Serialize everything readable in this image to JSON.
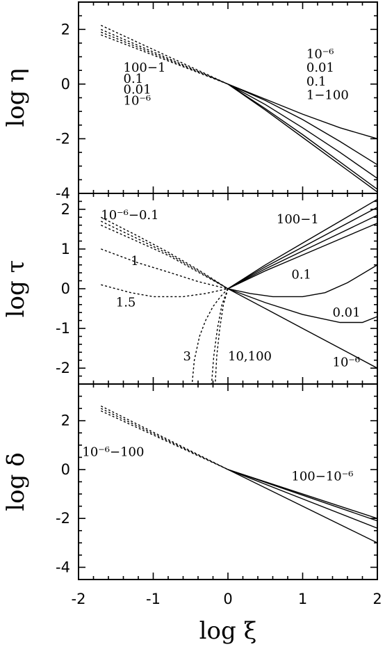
{
  "chart_data": [
    {
      "type": "line",
      "panel": "top",
      "ylabel": "log η",
      "xlim": [
        -2,
        2
      ],
      "ylim": [
        -4,
        3
      ],
      "yticks": [
        "-4",
        "-2",
        "0",
        "2"
      ],
      "annotations": [
        {
          "text": "100−1",
          "x": -1.4,
          "y": 0.45
        },
        {
          "text": "0.1",
          "x": -1.4,
          "y": 0.05
        },
        {
          "text": "0.01",
          "x": -1.4,
          "y": -0.35
        },
        {
          "text": "10⁻⁶",
          "x": -1.4,
          "y": -0.75
        },
        {
          "text": "10⁻⁶",
          "x": 1.05,
          "y": 0.95
        },
        {
          "text": "0.01",
          "x": 1.05,
          "y": 0.45
        },
        {
          "text": "0.1",
          "x": 1.05,
          "y": -0.05
        },
        {
          "text": "1−100",
          "x": 1.05,
          "y": -0.55
        }
      ],
      "series": [
        {
          "style": "dotted",
          "x": [
            -1.7,
            0
          ],
          "y": [
            2.15,
            0
          ]
        },
        {
          "style": "dotted",
          "x": [
            -1.7,
            0
          ],
          "y": [
            2.0,
            0
          ]
        },
        {
          "style": "dotted",
          "x": [
            -1.7,
            0
          ],
          "y": [
            1.9,
            0
          ]
        },
        {
          "style": "dotted",
          "x": [
            -1.7,
            0
          ],
          "y": [
            1.8,
            0
          ]
        },
        {
          "style": "solid",
          "x": [
            0,
            0.5,
            1,
            1.5,
            2
          ],
          "y": [
            0,
            -0.55,
            -1.1,
            -1.6,
            -2.0
          ]
        },
        {
          "style": "solid",
          "x": [
            0,
            0.5,
            1,
            1.5,
            2
          ],
          "y": [
            0,
            -0.6,
            -1.3,
            -2.1,
            -2.95
          ]
        },
        {
          "style": "solid",
          "x": [
            0,
            0.5,
            1,
            1.5,
            2
          ],
          "y": [
            0,
            -0.75,
            -1.6,
            -2.5,
            -3.45
          ]
        },
        {
          "style": "solid",
          "x": [
            0,
            0.5,
            1,
            1.5,
            2
          ],
          "y": [
            0,
            -0.9,
            -1.85,
            -2.85,
            -3.85
          ]
        },
        {
          "style": "solid",
          "x": [
            0,
            0.5,
            1,
            1.5,
            2
          ],
          "y": [
            0,
            -0.95,
            -1.95,
            -2.95,
            -3.95
          ]
        }
      ]
    },
    {
      "type": "line",
      "panel": "middle",
      "ylabel": "log τ",
      "xlim": [
        -2,
        2
      ],
      "ylim": [
        -2.4,
        2.4
      ],
      "yticks": [
        "-2",
        "-1",
        "0",
        "1",
        "2"
      ],
      "annotations": [
        {
          "text": "10⁻⁶−0.1",
          "x": -1.7,
          "y": 1.75
        },
        {
          "text": "1",
          "x": -1.3,
          "y": 0.6
        },
        {
          "text": "1.5",
          "x": -1.5,
          "y": -0.45
        },
        {
          "text": "3",
          "x": -0.6,
          "y": -1.8
        },
        {
          "text": "10,100",
          "x": 0.0,
          "y": -1.8
        },
        {
          "text": "100−1",
          "x": 0.65,
          "y": 1.65
        },
        {
          "text": "0.1",
          "x": 0.85,
          "y": 0.25
        },
        {
          "text": "0.01",
          "x": 1.4,
          "y": -0.7
        },
        {
          "text": "10⁻⁶",
          "x": 1.4,
          "y": -1.95
        }
      ],
      "series": [
        {
          "style": "dotted",
          "x": [
            -1.7,
            -1.2,
            -0.8,
            -0.4,
            0
          ],
          "y": [
            1.8,
            1.32,
            0.92,
            0.48,
            0
          ]
        },
        {
          "style": "dotted",
          "x": [
            -1.7,
            -1.2,
            -0.8,
            -0.4,
            0
          ],
          "y": [
            1.7,
            1.25,
            0.88,
            0.45,
            0
          ]
        },
        {
          "style": "dotted",
          "x": [
            -1.7,
            -1.2,
            -0.8,
            -0.4,
            0
          ],
          "y": [
            1.6,
            1.18,
            0.84,
            0.42,
            0
          ]
        },
        {
          "style": "dotted",
          "x": [
            -1.7,
            -1.2,
            -0.8,
            -0.4,
            -0.1,
            0
          ],
          "y": [
            1.0,
            0.65,
            0.42,
            0.18,
            0.04,
            0
          ]
        },
        {
          "style": "dotted",
          "x": [
            -1.7,
            -1.3,
            -1.0,
            -0.6,
            -0.3,
            -0.1,
            0
          ],
          "y": [
            0.1,
            -0.1,
            -0.2,
            -0.2,
            -0.12,
            -0.04,
            0
          ]
        },
        {
          "style": "dotted",
          "x": [
            0,
            -0.1,
            -0.2,
            -0.3,
            -0.38,
            -0.45,
            -0.48
          ],
          "y": [
            0,
            -0.2,
            -0.45,
            -0.8,
            -1.2,
            -1.8,
            -2.4
          ]
        },
        {
          "style": "dotted",
          "x": [
            0,
            -0.08,
            -0.14,
            -0.19,
            -0.22
          ],
          "y": [
            0,
            -0.4,
            -1.0,
            -1.7,
            -2.4
          ]
        },
        {
          "style": "dotted",
          "x": [
            0,
            -0.06,
            -0.11,
            -0.15,
            -0.17
          ],
          "y": [
            0,
            -0.4,
            -1.0,
            -1.7,
            -2.4
          ]
        },
        {
          "style": "solid",
          "x": [
            0,
            0.5,
            1,
            1.5,
            2
          ],
          "y": [
            0,
            0.6,
            1.15,
            1.7,
            2.25
          ]
        },
        {
          "style": "solid",
          "x": [
            0,
            0.5,
            1,
            1.5,
            2
          ],
          "y": [
            0,
            0.55,
            1.05,
            1.55,
            2.05
          ]
        },
        {
          "style": "solid",
          "x": [
            0,
            0.5,
            1,
            1.5,
            2
          ],
          "y": [
            0,
            0.5,
            0.95,
            1.4,
            1.85
          ]
        },
        {
          "style": "solid",
          "x": [
            0,
            0.5,
            1,
            1.5,
            2
          ],
          "y": [
            0,
            0.45,
            0.85,
            1.25,
            1.65
          ]
        },
        {
          "style": "solid",
          "x": [
            0,
            0.3,
            0.6,
            1.0,
            1.3,
            1.6,
            2
          ],
          "y": [
            0,
            -0.12,
            -0.2,
            -0.2,
            -0.1,
            0.15,
            0.6
          ]
        },
        {
          "style": "solid",
          "x": [
            0,
            0.5,
            1,
            1.5,
            1.8,
            2
          ],
          "y": [
            0,
            -0.35,
            -0.65,
            -0.85,
            -0.85,
            -0.7
          ]
        },
        {
          "style": "solid",
          "x": [
            0,
            0.5,
            1,
            1.5,
            2
          ],
          "y": [
            0,
            -0.5,
            -1.0,
            -1.5,
            -2.0
          ]
        }
      ]
    },
    {
      "type": "line",
      "panel": "bottom",
      "ylabel": "log δ",
      "xlabel": "log ξ",
      "xlim": [
        -2,
        2
      ],
      "ylim": [
        -4.5,
        3.5
      ],
      "xticks": [
        "-2",
        "-1",
        "0",
        "1",
        "2"
      ],
      "yticks": [
        "-4",
        "-2",
        "0",
        "2"
      ],
      "annotations": [
        {
          "text": "10⁻⁶−100",
          "x": -1.95,
          "y": 0.55
        },
        {
          "text": "100−10⁻⁶",
          "x": 0.85,
          "y": -0.45
        }
      ],
      "series": [
        {
          "style": "dotted",
          "x": [
            -1.7,
            0
          ],
          "y": [
            2.6,
            0
          ]
        },
        {
          "style": "dotted",
          "x": [
            -1.7,
            0
          ],
          "y": [
            2.5,
            0
          ]
        },
        {
          "style": "dotted",
          "x": [
            -1.7,
            0
          ],
          "y": [
            2.4,
            0
          ]
        },
        {
          "style": "solid",
          "x": [
            0,
            1,
            2
          ],
          "y": [
            0,
            -1.0,
            -2.0
          ]
        },
        {
          "style": "solid",
          "x": [
            0,
            1,
            2
          ],
          "y": [
            0,
            -1.05,
            -2.1
          ]
        },
        {
          "style": "solid",
          "x": [
            0,
            1,
            2
          ],
          "y": [
            0,
            -1.2,
            -2.4
          ]
        },
        {
          "style": "solid",
          "x": [
            0,
            1,
            2
          ],
          "y": [
            0,
            -1.5,
            -3.0
          ]
        }
      ]
    }
  ]
}
